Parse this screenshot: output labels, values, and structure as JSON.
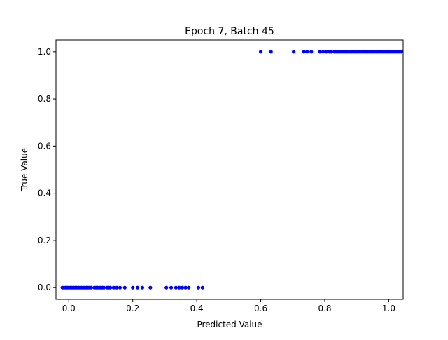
{
  "chart_data": {
    "type": "scatter",
    "title": "Epoch 7, Batch 45",
    "xlabel": "Predicted Value",
    "ylabel": "True Value",
    "xlim": [
      -0.04,
      1.045
    ],
    "ylim": [
      -0.05,
      1.05
    ],
    "xticks": [
      {
        "value": 0.0,
        "label": "0.0"
      },
      {
        "value": 0.2,
        "label": "0.2"
      },
      {
        "value": 0.4,
        "label": "0.4"
      },
      {
        "value": 0.6,
        "label": "0.6"
      },
      {
        "value": 0.8,
        "label": "0.8"
      },
      {
        "value": 1.0,
        "label": "1.0"
      }
    ],
    "yticks": [
      {
        "value": 0.0,
        "label": "0.0"
      },
      {
        "value": 0.2,
        "label": "0.2"
      },
      {
        "value": 0.4,
        "label": "0.4"
      },
      {
        "value": 0.6,
        "label": "0.6"
      },
      {
        "value": 0.8,
        "label": "0.8"
      },
      {
        "value": 1.0,
        "label": "1.0"
      }
    ],
    "grid": false,
    "series": [
      {
        "color": "#0000ff",
        "x": [
          -0.02,
          -0.015,
          -0.01,
          -0.005,
          0.0,
          0.005,
          0.01,
          0.015,
          0.02,
          0.025,
          0.03,
          0.035,
          0.04,
          0.045,
          0.05,
          0.055,
          0.06,
          0.065,
          0.07,
          0.08,
          0.085,
          0.09,
          0.095,
          0.1,
          0.105,
          0.11,
          0.12,
          0.125,
          0.13,
          0.14,
          0.15,
          0.16,
          0.175,
          0.2,
          0.215,
          0.23,
          0.255,
          0.305,
          0.32,
          0.335,
          0.345,
          0.355,
          0.365,
          0.375,
          0.405,
          0.418,
          0.6,
          0.632,
          0.703,
          0.735,
          0.745,
          0.758,
          0.785,
          0.795,
          0.805,
          0.815,
          0.82,
          0.83,
          0.835,
          0.84,
          0.845,
          0.85,
          0.855,
          0.86,
          0.865,
          0.87,
          0.875,
          0.88,
          0.885,
          0.89,
          0.895,
          0.9,
          0.905,
          0.91,
          0.915,
          0.92,
          0.925,
          0.93,
          0.935,
          0.94,
          0.945,
          0.95,
          0.955,
          0.96,
          0.965,
          0.97,
          0.975,
          0.98,
          0.985,
          0.99,
          0.995,
          1.0,
          1.005,
          1.01,
          1.015,
          1.02,
          1.025,
          1.03,
          1.035,
          1.04
        ],
        "y": [
          0,
          0,
          0,
          0,
          0,
          0,
          0,
          0,
          0,
          0,
          0,
          0,
          0,
          0,
          0,
          0,
          0,
          0,
          0,
          0,
          0,
          0,
          0,
          0,
          0,
          0,
          0,
          0,
          0,
          0,
          0,
          0,
          0,
          0,
          0,
          0,
          0,
          0,
          0,
          0,
          0,
          0,
          0,
          0,
          0,
          0,
          1,
          1,
          1,
          1,
          1,
          1,
          1,
          1,
          1,
          1,
          1,
          1,
          1,
          1,
          1,
          1,
          1,
          1,
          1,
          1,
          1,
          1,
          1,
          1,
          1,
          1,
          1,
          1,
          1,
          1,
          1,
          1,
          1,
          1,
          1,
          1,
          1,
          1,
          1,
          1,
          1,
          1,
          1,
          1,
          1,
          1,
          1,
          1,
          1,
          1,
          1,
          1,
          1,
          1
        ]
      }
    ]
  }
}
